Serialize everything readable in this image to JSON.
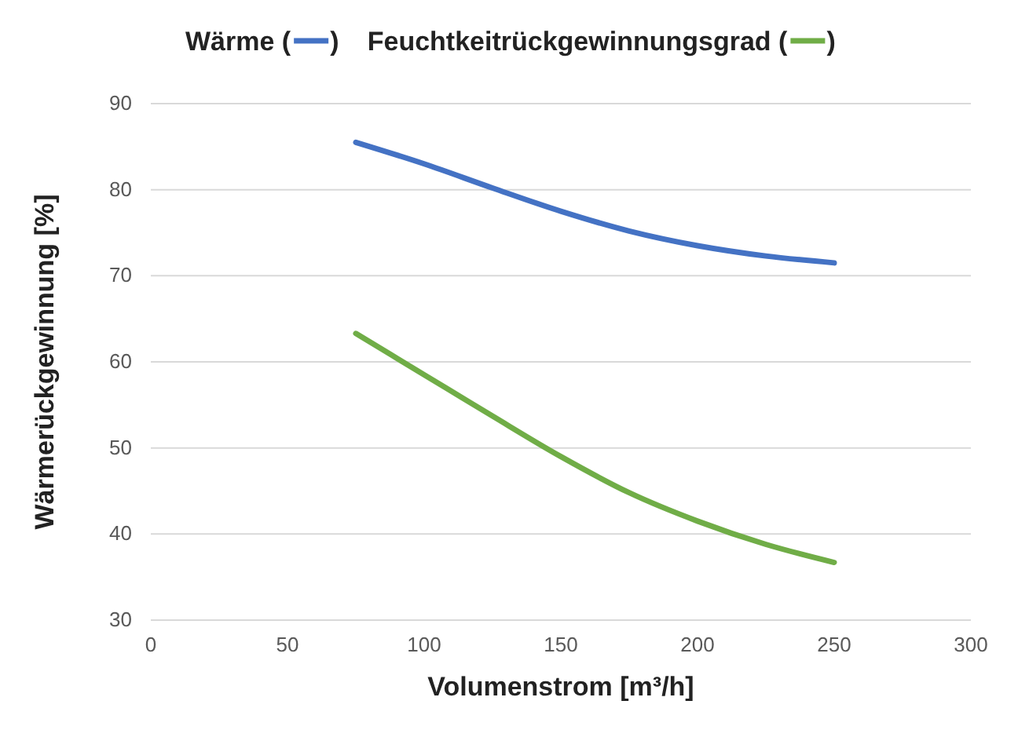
{
  "chart_data": {
    "type": "line",
    "xlabel": "Volumenstrom [m³/h]",
    "ylabel": "Wärmerückgewinnung [%]",
    "x": [
      75,
      100,
      125,
      150,
      175,
      200,
      225,
      250
    ],
    "series": [
      {
        "name": "Wärme (",
        "color": "#4472c4",
        "values": [
          85.5,
          83,
          80.2,
          77.5,
          75.2,
          73.5,
          72.3,
          71.5
        ]
      },
      {
        "name": "Feuchtkeitrückgewinnungsgrad (",
        "color": "#70ad47",
        "values": [
          63.3,
          58.5,
          53.7,
          49,
          44.8,
          41.5,
          38.8,
          36.7
        ]
      }
    ],
    "xlim": [
      0,
      300
    ],
    "xticks": [
      0,
      50,
      100,
      150,
      200,
      250,
      300
    ],
    "ylim": [
      30,
      90
    ],
    "yticks": [
      30,
      40,
      50,
      60,
      70,
      80,
      90
    ],
    "annotations": [
      ")",
      ")"
    ],
    "grid": "y",
    "legend": "top",
    "marker": "none",
    "line_style": "solid"
  }
}
